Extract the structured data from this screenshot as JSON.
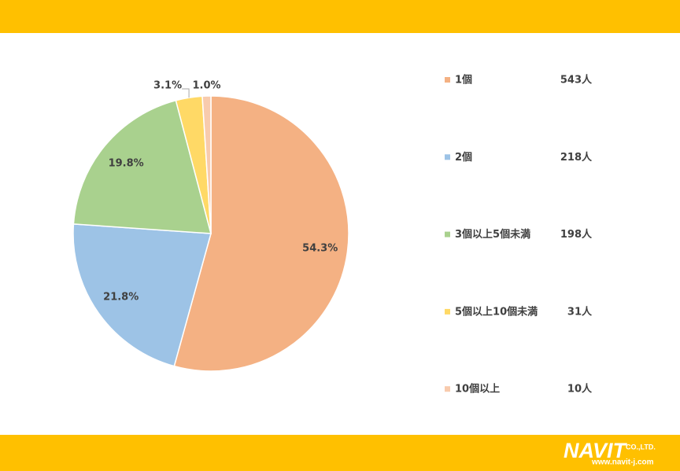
{
  "chart_data": {
    "type": "pie",
    "categories": [
      "1個",
      "2個",
      "3個以上5個未満",
      "5個以上10個未満",
      "10個以上"
    ],
    "values": [
      54.3,
      21.8,
      19.8,
      3.1,
      1.0
    ],
    "value_labels": [
      "54.3%",
      "21.8%",
      "19.8%",
      "3.1%",
      "1.0%"
    ],
    "count_labels": [
      "543人",
      "218人",
      "198人",
      "31人",
      "10人"
    ],
    "colors": [
      "#F4B183",
      "#9DC3E6",
      "#A9D18E",
      "#FFD966",
      "#F8CBAD"
    ],
    "legend": "right"
  },
  "logo": {
    "name": "NAVIT",
    "suffix": "CO.,LTD.",
    "url": "www.navit-j.com"
  }
}
